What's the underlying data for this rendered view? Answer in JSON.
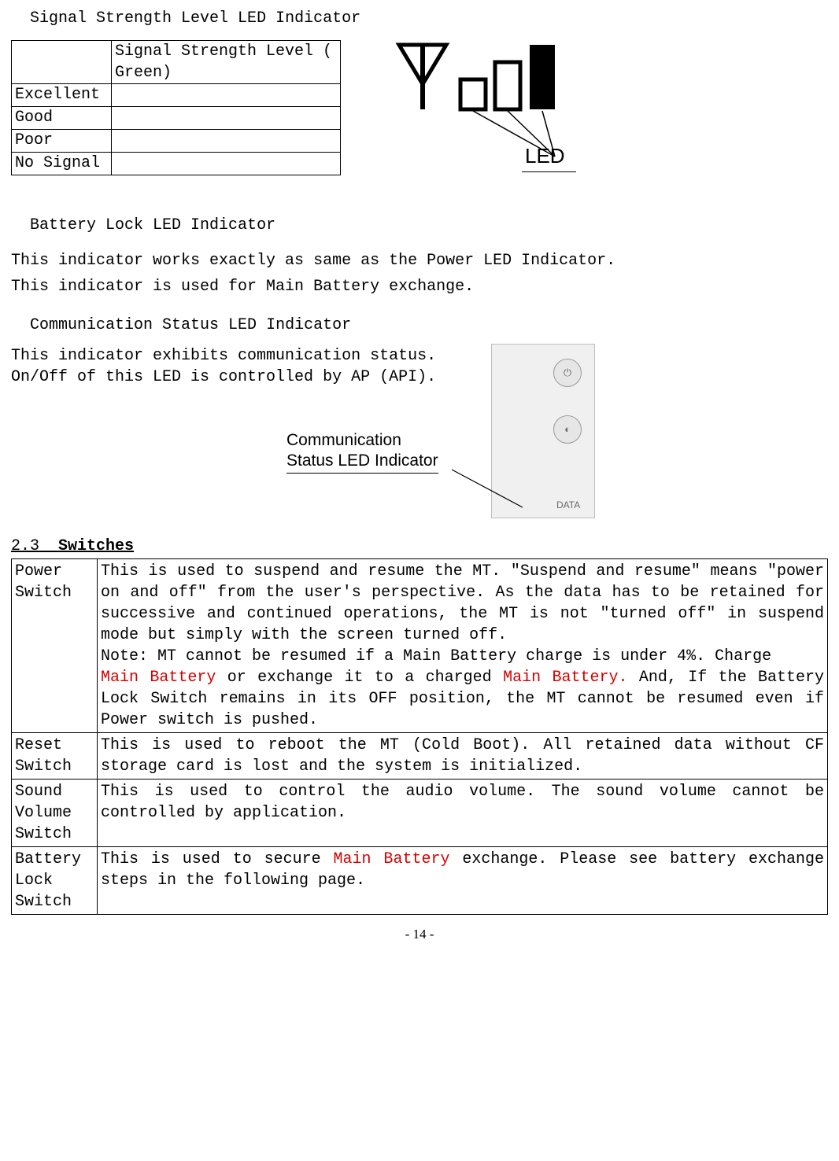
{
  "title1": "Signal Strength Level LED Indicator",
  "signal_table": {
    "header_blank": "",
    "header": "Signal Strength Level (　Green)",
    "rows": [
      "Excellent",
      "Good",
      "Poor",
      "No Signal"
    ]
  },
  "led_label": "LED",
  "title2": "Battery Lock LED Indicator",
  "battery_p1": "This indicator works exactly as same as the Power LED Indicator.",
  "battery_p2": "This indicator is used for Main Battery exchange.",
  "title3": "Communication Status LED Indicator",
  "comm_p1": "This indicator exhibits communication status.",
  "comm_p2": "On/Off of this LED is controlled by AP (API).",
  "comm_callout_l1": "Communication",
  "comm_callout_l2": "Status LED Indicator",
  "device_label": "DATA",
  "section_num": "2.3",
  "section_title": "Switches",
  "switches": [
    {
      "name": " Power Switch",
      "desc_parts": [
        {
          "t": "This is used to suspend and resume the MT.  \"Suspend and resume\" means \"power on and off\" from the user's perspective.   As the data has to be retained for successive and continued operations, the MT is not \"turned off\" in suspend mode but simply with the screen turned off.",
          "red": false,
          "br": true
        },
        {
          "t": "Note: MT cannot be resumed if a Main Battery charge is under 4%. Charge",
          "red": false,
          "br": true
        },
        {
          "t": "Main Battery",
          "red": true,
          "br": false
        },
        {
          "t": " or exchange it to a charged ",
          "red": false,
          "br": false
        },
        {
          "t": "Main Battery.",
          "red": true,
          "br": false
        },
        {
          "t": " And, If the Battery Lock Switch remains in its OFF position, the MT cannot be resumed even if Power switch is pushed.",
          "red": false,
          "br": false
        }
      ]
    },
    {
      "name": "Reset Switch",
      "desc_parts": [
        {
          "t": "This is used to reboot the MT (Cold Boot). All retained data without CF storage card is lost and the system is initialized.",
          "red": false,
          "br": false
        }
      ]
    },
    {
      "name": "Sound Volume Switch",
      "desc_parts": [
        {
          "t": "This is used to control the audio volume.   The sound volume cannot be controlled by application.",
          "red": false,
          "br": false
        }
      ]
    },
    {
      "name": "Battery Lock Switch",
      "desc_parts": [
        {
          "t": "This is used to secure ",
          "red": false,
          "br": false
        },
        {
          "t": "Main Battery",
          "red": true,
          "br": false
        },
        {
          "t": " exchange.   Please see battery exchange steps in the following page.",
          "red": false,
          "br": false
        }
      ]
    }
  ],
  "page_number": "- 14 -",
  "colors": {
    "red": "#d40000",
    "black": "#000000",
    "device_border": "#bdbdbd",
    "device_fill": "#f0f0f0"
  }
}
